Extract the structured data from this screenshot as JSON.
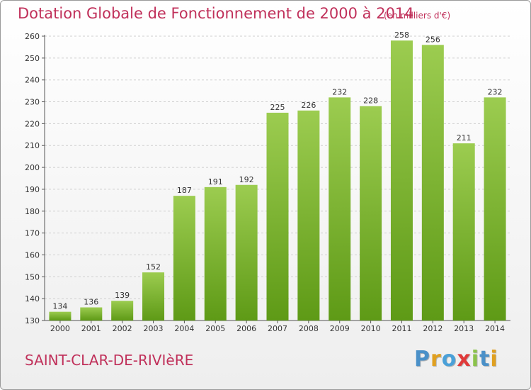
{
  "header": {
    "title": "Dotation Globale de Fonctionnement de 2000 à 2014",
    "unit_note": "(en milliers d'€)"
  },
  "footer": {
    "commune": "SAINT-CLAR-DE-RIVIèRE",
    "logo_text": "Proxiti",
    "logo_letters": [
      {
        "ch": "P",
        "color": "#4a90c8"
      },
      {
        "ch": "r",
        "color": "#e0a020"
      },
      {
        "ch": "o",
        "color": "#4aa0d8"
      },
      {
        "ch": "x",
        "color": "#e03a3a"
      },
      {
        "ch": "i",
        "color": "#8bc34a"
      },
      {
        "ch": "t",
        "color": "#4a90c8"
      },
      {
        "ch": "i",
        "color": "#e0a020"
      }
    ]
  },
  "colors": {
    "bar_top": "#9ccc50",
    "bar_bottom": "#5e9a16",
    "title": "#c0305a",
    "grid": "#cfcfcf",
    "axis": "#555555"
  },
  "chart_data": {
    "type": "bar",
    "title": "Dotation Globale de Fonctionnement de 2000 à 2014",
    "subtitle": "(en milliers d'€)",
    "xlabel": "",
    "ylabel": "",
    "categories": [
      "2000",
      "2001",
      "2002",
      "2003",
      "2004",
      "2005",
      "2006",
      "2007",
      "2008",
      "2009",
      "2010",
      "2011",
      "2012",
      "2013",
      "2014"
    ],
    "values": [
      134,
      136,
      139,
      152,
      187,
      191,
      192,
      225,
      226,
      232,
      228,
      258,
      256,
      211,
      232
    ],
    "ylim": [
      130,
      260
    ],
    "yticks": [
      130,
      140,
      150,
      160,
      170,
      180,
      190,
      200,
      210,
      220,
      230,
      240,
      250,
      260
    ],
    "grid": true,
    "data_labels": true
  }
}
